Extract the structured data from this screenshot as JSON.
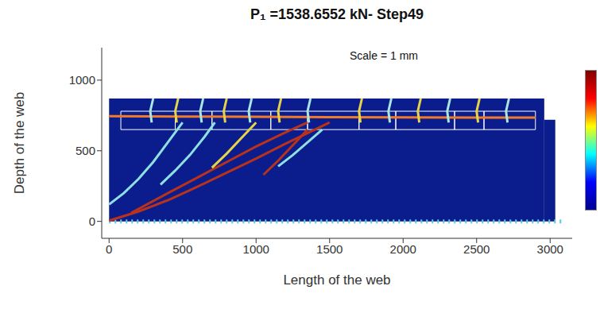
{
  "chart_data": {
    "type": "line",
    "title": "P₁ =1538.6552 kN- Step49",
    "annotations": [
      "Scale = 1 mm"
    ],
    "x_label": "Length of the web",
    "y_label": "Depth of the web",
    "xlim": [
      -50,
      3150
    ],
    "ylim": [
      -120,
      1230
    ],
    "xticks": [
      0,
      500,
      1000,
      1500,
      2000,
      2500,
      3000
    ],
    "yticks": [
      0,
      500,
      1000
    ],
    "regions": [
      {
        "x": [
          0,
          2960
        ],
        "y": [
          0,
          870
        ],
        "color": "#0b1d8c"
      },
      {
        "x": [
          2960,
          3035
        ],
        "y": [
          0,
          720
        ],
        "color": "#0b1d8c"
      }
    ],
    "boxes": {
      "x": [
        80,
        450,
        700,
        1100,
        1350,
        1700,
        1950,
        2350,
        2550,
        2900
      ],
      "y": [
        650,
        780
      ]
    },
    "colorbar": {
      "colors": [
        "#00008f",
        "#0000ff",
        "#00ffff",
        "#ffff00",
        "#ff0000",
        "#800000"
      ]
    },
    "series": [
      {
        "color": "#5fc8e0",
        "line_style": "dotted",
        "x": [
          0,
          3100
        ],
        "values": [
          0,
          0
        ]
      },
      {
        "color": "#f07a2a",
        "line_style": "solid",
        "x": [
          0,
          500,
          1000,
          1500,
          2000,
          2500,
          2900
        ],
        "values": [
          745,
          742,
          740,
          738,
          736,
          735,
          735
        ]
      },
      {
        "color": "#b8321c",
        "line_style": "solid",
        "x": [
          0,
          200,
          400,
          600,
          800,
          1000,
          1200,
          1400,
          1500
        ],
        "values": [
          5,
          70,
          150,
          245,
          345,
          445,
          550,
          650,
          700
        ]
      },
      {
        "color": "#b8321c",
        "line_style": "solid",
        "x": [
          150,
          400,
          600,
          800,
          1000,
          1200,
          1350
        ],
        "values": [
          60,
          200,
          310,
          420,
          530,
          630,
          700
        ]
      },
      {
        "color": "#b8321c",
        "line_style": "solid",
        "x": [
          1050,
          1150,
          1250,
          1350
        ],
        "values": [
          330,
          430,
          540,
          650
        ]
      },
      {
        "color": "#8fe0e0",
        "line_style": "solid",
        "x": [
          0,
          100,
          200,
          300,
          400,
          500
        ],
        "values": [
          120,
          200,
          300,
          420,
          560,
          700
        ]
      },
      {
        "color": "#8fe0e0",
        "line_style": "solid",
        "x": [
          350,
          450,
          550,
          650,
          720
        ],
        "values": [
          260,
          360,
          470,
          600,
          700
        ]
      },
      {
        "color": "#8fe0e0",
        "line_style": "solid",
        "x": [
          1150,
          1250,
          1350,
          1450
        ],
        "values": [
          390,
          470,
          560,
          650
        ]
      },
      {
        "color": "#e5d34a",
        "line_style": "solid",
        "x": [
          700,
          800,
          900,
          1000
        ],
        "values": [
          380,
          480,
          590,
          700
        ]
      },
      {
        "color": "#a9e6e0",
        "line_style": "solid",
        "x": [
          300,
          280,
          290
        ],
        "values": [
          870,
          780,
          700
        ]
      },
      {
        "color": "#e5d34a",
        "line_style": "solid",
        "x": [
          470,
          450,
          460
        ],
        "values": [
          870,
          780,
          700
        ]
      },
      {
        "color": "#a9e6e0",
        "line_style": "solid",
        "x": [
          640,
          620,
          630
        ],
        "values": [
          870,
          780,
          700
        ]
      },
      {
        "color": "#e5d34a",
        "line_style": "solid",
        "x": [
          800,
          780,
          790
        ],
        "values": [
          870,
          780,
          700
        ]
      },
      {
        "color": "#a9e6e0",
        "line_style": "solid",
        "x": [
          970,
          950,
          960
        ],
        "values": [
          870,
          780,
          700
        ]
      },
      {
        "color": "#e5d34a",
        "line_style": "solid",
        "x": [
          1170,
          1150,
          1160
        ],
        "values": [
          870,
          780,
          700
        ]
      },
      {
        "color": "#a9e6e0",
        "line_style": "solid",
        "x": [
          1370,
          1350,
          1360
        ],
        "values": [
          870,
          780,
          700
        ]
      },
      {
        "color": "#e5d34a",
        "line_style": "solid",
        "x": [
          1720,
          1700,
          1710
        ],
        "values": [
          870,
          780,
          700
        ]
      },
      {
        "color": "#a9e6e0",
        "line_style": "solid",
        "x": [
          1920,
          1900,
          1910
        ],
        "values": [
          870,
          780,
          700
        ]
      },
      {
        "color": "#e5d34a",
        "line_style": "solid",
        "x": [
          2120,
          2100,
          2110
        ],
        "values": [
          870,
          780,
          700
        ]
      },
      {
        "color": "#a9e6e0",
        "line_style": "solid",
        "x": [
          2320,
          2300,
          2310
        ],
        "values": [
          870,
          780,
          700
        ]
      },
      {
        "color": "#e5d34a",
        "line_style": "solid",
        "x": [
          2520,
          2500,
          2510
        ],
        "values": [
          870,
          780,
          700
        ]
      },
      {
        "color": "#a9e6e0",
        "line_style": "solid",
        "x": [
          2720,
          2700,
          2710
        ],
        "values": [
          870,
          780,
          700
        ]
      }
    ]
  }
}
